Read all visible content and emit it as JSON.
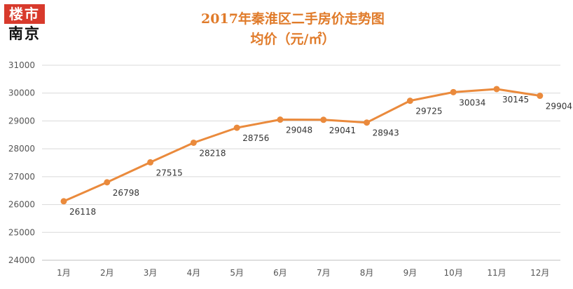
{
  "logo": {
    "top": "楼市",
    "bottom": "南京"
  },
  "chart_data": {
    "type": "line",
    "title": "2017年秦淮区二手房价走势图",
    "subtitle": "均价（元/㎡）",
    "xlabel": "",
    "ylabel": "",
    "categories": [
      "1月",
      "2月",
      "3月",
      "4月",
      "5月",
      "6月",
      "7月",
      "8月",
      "9月",
      "10月",
      "11月",
      "12月"
    ],
    "values": [
      26118,
      26798,
      27515,
      28218,
      28756,
      29048,
      29041,
      28943,
      29725,
      30034,
      30145,
      29904
    ],
    "ylim": [
      24000,
      31000
    ],
    "yticks": [
      24000,
      25000,
      26000,
      27000,
      28000,
      29000,
      30000,
      31000
    ],
    "grid": true,
    "line_color": "#ea8a3c"
  }
}
